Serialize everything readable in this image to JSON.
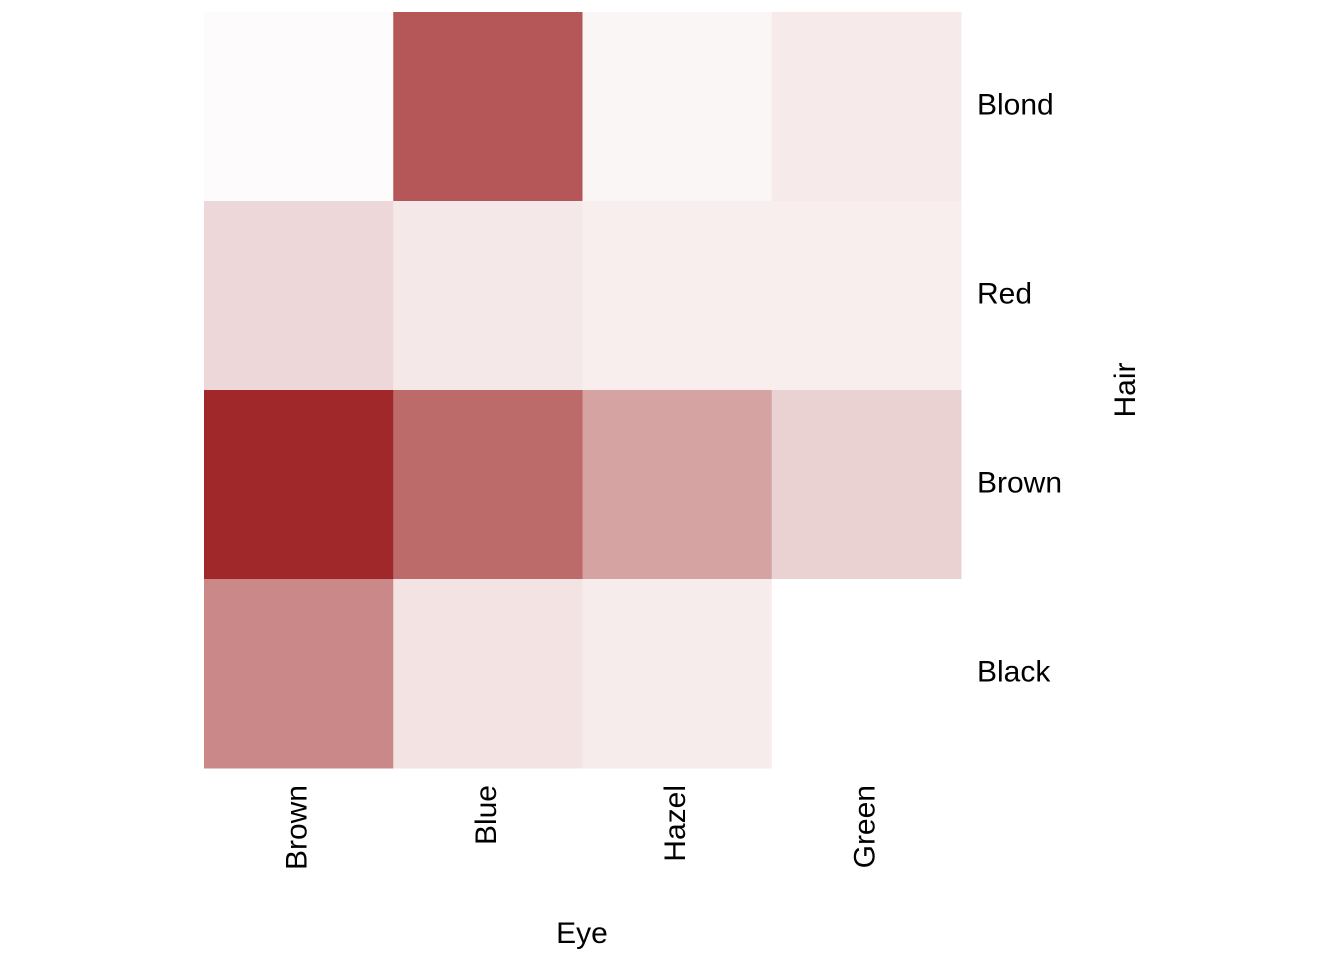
{
  "chart_data": {
    "type": "heatmap",
    "x_label": "Eye",
    "y_label": "Hair",
    "x_categories": [
      "Brown",
      "Blue",
      "Hazel",
      "Green"
    ],
    "y_categories": [
      "Blond",
      "Red",
      "Brown",
      "Black"
    ],
    "values": [
      [
        7,
        94,
        10,
        16
      ],
      [
        26,
        17,
        14,
        14
      ],
      [
        119,
        84,
        54,
        29
      ],
      [
        68,
        20,
        15,
        5
      ]
    ],
    "color_low": "#ffffff",
    "color_high": "#a0282a"
  }
}
